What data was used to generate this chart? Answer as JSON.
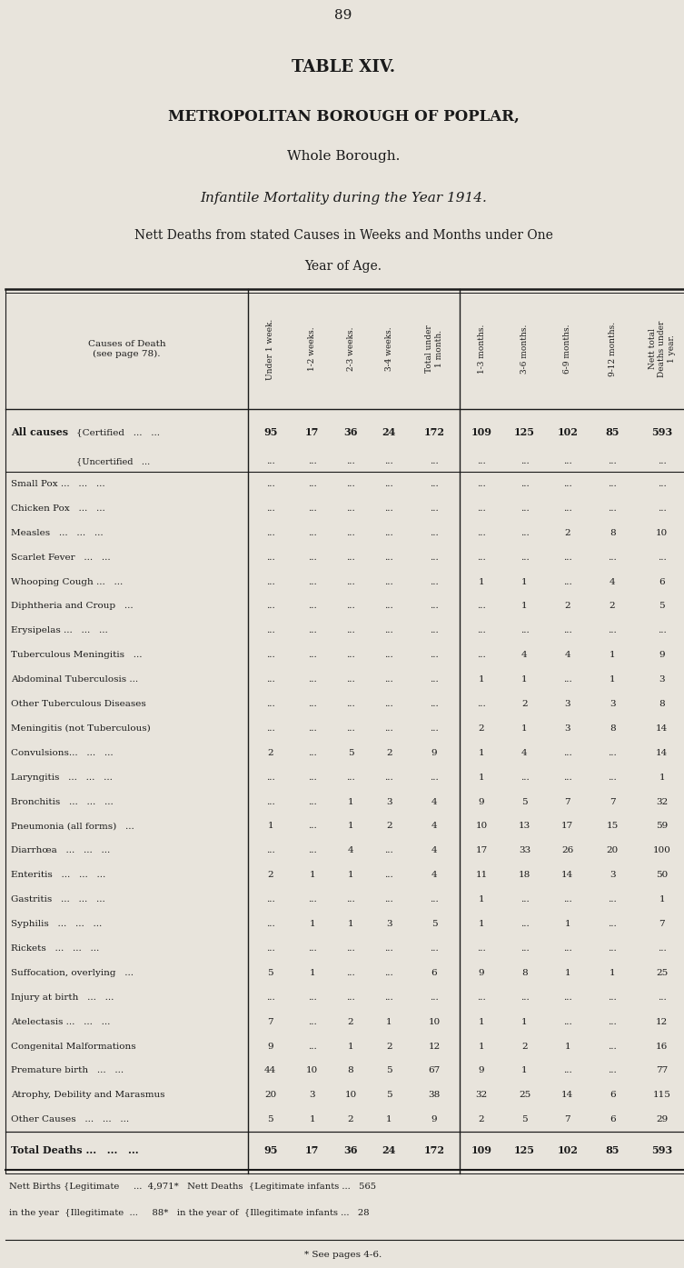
{
  "page_number": "89",
  "title1": "TABLE XIV.",
  "title2": "METROPOLITAN BOROUGH OF POPLAR,",
  "title3": "Whole Borough.",
  "title4": "Infantile Mortality during the Year 1914.",
  "title5": "Nett Deaths from stated Causes in Weeks and Months under One",
  "title6": "Year of Age.",
  "col_headers": [
    "Under 1 week.",
    "1-2 weeks.",
    "2-3 weeks.",
    "3-4 weeks.",
    "Total under\n1 month.",
    "1-3 months.",
    "3-6 months.",
    "6-9 months.",
    "9-12 months.",
    "Nett total\nDeaths under\n1 year."
  ],
  "row_label_header": "Causes of Death\n(see page 78).",
  "rows": [
    {
      "label": "All causes  {Certified   ...   ...",
      "label_left": "All causes",
      "label_right": "Certified   ...   ...",
      "data": [
        "95",
        "17",
        "36",
        "24",
        "172",
        "109",
        "125",
        "102",
        "85",
        "593"
      ],
      "bold": true,
      "separator_after": false,
      "two_part": true
    },
    {
      "label": "Uncertified   ...",
      "label_left": "",
      "label_right": "Uncertified   ...",
      "data": [
        "...",
        "...",
        "...",
        "...",
        "...",
        "...",
        "...",
        "...",
        "...",
        "..."
      ],
      "bold": false,
      "separator_after": true,
      "two_part": true
    },
    {
      "label": "Small Pox ...   ...   ...",
      "data": [
        "...",
        "...",
        "...",
        "...",
        "...",
        "...",
        "...",
        "...",
        "...",
        "..."
      ],
      "bold": false,
      "separator_after": false,
      "two_part": false
    },
    {
      "label": "Chicken Pox   ...   ...",
      "data": [
        "...",
        "...",
        "...",
        "...",
        "...",
        "...",
        "...",
        "...",
        "...",
        "..."
      ],
      "bold": false,
      "separator_after": false,
      "two_part": false
    },
    {
      "label": "Measles   ...   ...   ...",
      "data": [
        "...",
        "...",
        "...",
        "...",
        "...",
        "...",
        "...",
        "2",
        "8",
        "10"
      ],
      "bold": false,
      "separator_after": false,
      "two_part": false
    },
    {
      "label": "Scarlet Fever   ...   ...",
      "data": [
        "...",
        "...",
        "...",
        "...",
        "...",
        "...",
        "...",
        "...",
        "...",
        "..."
      ],
      "bold": false,
      "separator_after": false,
      "two_part": false
    },
    {
      "label": "Whooping Cough ...   ...",
      "data": [
        "...",
        "...",
        "...",
        "...",
        "...",
        "1",
        "1",
        "...",
        "4",
        "6"
      ],
      "bold": false,
      "separator_after": false,
      "two_part": false
    },
    {
      "label": "Diphtheria and Croup   ...",
      "data": [
        "...",
        "...",
        "...",
        "...",
        "...",
        "...",
        "1",
        "2",
        "2",
        "5"
      ],
      "bold": false,
      "separator_after": false,
      "two_part": false
    },
    {
      "label": "Erysipelas ...   ...   ...",
      "data": [
        "...",
        "...",
        "...",
        "...",
        "...",
        "...",
        "...",
        "...",
        "...",
        "..."
      ],
      "bold": false,
      "separator_after": false,
      "two_part": false
    },
    {
      "label": "Tuberculous Meningitis   ...",
      "data": [
        "...",
        "...",
        "...",
        "...",
        "...",
        "...",
        "4",
        "4",
        "1",
        "9"
      ],
      "bold": false,
      "separator_after": false,
      "two_part": false
    },
    {
      "label": "Abdominal Tuberculosis ...",
      "data": [
        "...",
        "...",
        "...",
        "...",
        "...",
        "1",
        "1",
        "...",
        "1",
        "3"
      ],
      "bold": false,
      "separator_after": false,
      "two_part": false
    },
    {
      "label": "Other Tuberculous Diseases",
      "data": [
        "...",
        "...",
        "...",
        "...",
        "...",
        "...",
        "2",
        "3",
        "3",
        "8"
      ],
      "bold": false,
      "separator_after": false,
      "two_part": false
    },
    {
      "label": "Meningitis (not Tuberculous)",
      "data": [
        "...",
        "...",
        "...",
        "...",
        "...",
        "2",
        "1",
        "3",
        "8",
        "14"
      ],
      "bold": false,
      "separator_after": false,
      "two_part": false
    },
    {
      "label": "Convulsions...   ...   ...",
      "data": [
        "2",
        "...",
        "5",
        "2",
        "9",
        "1",
        "4",
        "...",
        "...",
        "14"
      ],
      "bold": false,
      "separator_after": false,
      "two_part": false
    },
    {
      "label": "Laryngitis   ...   ...   ...",
      "data": [
        "...",
        "...",
        "...",
        "...",
        "...",
        "1",
        "...",
        "...",
        "...",
        "1"
      ],
      "bold": false,
      "separator_after": false,
      "two_part": false
    },
    {
      "label": "Bronchitis   ...   ...   ...",
      "data": [
        "...",
        "...",
        "1",
        "3",
        "4",
        "9",
        "5",
        "7",
        "7",
        "32"
      ],
      "bold": false,
      "separator_after": false,
      "two_part": false
    },
    {
      "label": "Pneumonia (all forms)   ...",
      "data": [
        "1",
        "...",
        "1",
        "2",
        "4",
        "10",
        "13",
        "17",
        "15",
        "59"
      ],
      "bold": false,
      "separator_after": false,
      "two_part": false
    },
    {
      "label": "Diarrhœa   ...   ...   ...",
      "data": [
        "...",
        "...",
        "4",
        "...",
        "4",
        "17",
        "33",
        "26",
        "20",
        "100"
      ],
      "bold": false,
      "separator_after": false,
      "two_part": false
    },
    {
      "label": "Enteritis   ...   ...   ...",
      "data": [
        "2",
        "1",
        "1",
        "...",
        "4",
        "11",
        "18",
        "14",
        "3",
        "50"
      ],
      "bold": false,
      "separator_after": false,
      "two_part": false
    },
    {
      "label": "Gastritis   ...   ...   ...",
      "data": [
        "...",
        "...",
        "...",
        "...",
        "...",
        "1",
        "...",
        "...",
        "...",
        "1"
      ],
      "bold": false,
      "separator_after": false,
      "two_part": false
    },
    {
      "label": "Syphilis   ...   ...   ...",
      "data": [
        "...",
        "1",
        "1",
        "3",
        "5",
        "1",
        "...",
        "1",
        "...",
        "7"
      ],
      "bold": false,
      "separator_after": false,
      "two_part": false
    },
    {
      "label": "Rickets   ...   ...   ...",
      "data": [
        "...",
        "...",
        "...",
        "...",
        "...",
        "...",
        "...",
        "...",
        "...",
        "..."
      ],
      "bold": false,
      "separator_after": false,
      "two_part": false
    },
    {
      "label": "Suffocation, overlying   ...",
      "data": [
        "5",
        "1",
        "...",
        "...",
        "6",
        "9",
        "8",
        "1",
        "1",
        "25"
      ],
      "bold": false,
      "separator_after": false,
      "two_part": false
    },
    {
      "label": "Injury at birth   ...   ...",
      "data": [
        "...",
        "...",
        "...",
        "...",
        "...",
        "...",
        "...",
        "...",
        "...",
        "..."
      ],
      "bold": false,
      "separator_after": false,
      "two_part": false
    },
    {
      "label": "Atelectasis ...   ...   ...",
      "data": [
        "7",
        "...",
        "2",
        "1",
        "10",
        "1",
        "1",
        "...",
        "...",
        "12"
      ],
      "bold": false,
      "separator_after": false,
      "two_part": false
    },
    {
      "label": "Congenital Malformations",
      "data": [
        "9",
        "...",
        "1",
        "2",
        "12",
        "1",
        "2",
        "1",
        "...",
        "16"
      ],
      "bold": false,
      "separator_after": false,
      "two_part": false
    },
    {
      "label": "Premature birth   ...   ...",
      "data": [
        "44",
        "10",
        "8",
        "5",
        "67",
        "9",
        "1",
        "...",
        "...",
        "77"
      ],
      "bold": false,
      "separator_after": false,
      "two_part": false
    },
    {
      "label": "Atrophy, Debility and Marasmus",
      "data": [
        "20",
        "3",
        "10",
        "5",
        "38",
        "32",
        "25",
        "14",
        "6",
        "115"
      ],
      "bold": false,
      "separator_after": false,
      "two_part": false
    },
    {
      "label": "Other Causes   ...   ...   ...",
      "data": [
        "5",
        "1",
        "2",
        "1",
        "9",
        "2",
        "5",
        "7",
        "6",
        "29"
      ],
      "bold": false,
      "separator_after": true,
      "two_part": false
    },
    {
      "label": "Total Deaths ...   ...   ...",
      "data": [
        "95",
        "17",
        "36",
        "24",
        "172",
        "109",
        "125",
        "102",
        "85",
        "593"
      ],
      "bold": true,
      "separator_after": false,
      "two_part": false
    }
  ],
  "footer_line1": "Nett Births {Legitimate     ...  4,971*   Nett Deaths  {Legitimate infants ...   565",
  "footer_line2": "in the year  {Illegitimate  ...     88*   in the year of  {Illegitimate infants ...   28",
  "footer_note": "* See pages 4-6.",
  "bg_color": "#e8e4dc",
  "text_color": "#1a1a1a",
  "line_color": "#1a1a1a"
}
